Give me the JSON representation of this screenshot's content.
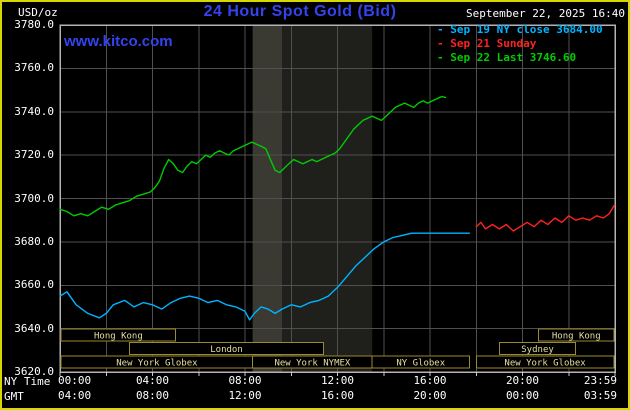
{
  "header": {
    "units": "USD/oz",
    "title": "24 Hour Spot Gold (Bid)",
    "site": "www.kitco.com",
    "datetime": "September 22, 2025 16:40"
  },
  "colors": {
    "title_blue": "#3344ee",
    "frame_yellow": "#d8d800",
    "text_white": "#ffffff"
  },
  "legend": {
    "bullet": "-",
    "items": [
      {
        "label": "Sep 19 NY close 3684.00",
        "color": "#00b4ff"
      },
      {
        "label": "Sep 21 Sunday",
        "color": "#ff2222"
      },
      {
        "label": "Sep 22 Last 3746.60",
        "color": "#00cc00"
      }
    ]
  },
  "axes": {
    "ny_time_label": "NY Time",
    "gmt_label": "GMT"
  },
  "chart_data": {
    "type": "line",
    "title": "24 Hour Spot Gold (Bid)",
    "ylabel": "USD/oz",
    "xlabel": "NY Time",
    "xlim_hours": [
      0,
      24
    ],
    "ylim": [
      3620,
      3780
    ],
    "y_tick_step": 20,
    "grid_hours_step": 2,
    "y_tick_labels": [
      "3780.0",
      "3760.0",
      "3740.0",
      "3720.0",
      "3700.0",
      "3680.0",
      "3660.0",
      "3640.0",
      "3620.0"
    ],
    "x_ticks": [
      {
        "hour": 0,
        "ny": "00:00",
        "gmt": "04:00"
      },
      {
        "hour": 4,
        "ny": "04:00",
        "gmt": "08:00"
      },
      {
        "hour": 8,
        "ny": "08:00",
        "gmt": "12:00"
      },
      {
        "hour": 12,
        "ny": "12:00",
        "gmt": "16:00"
      },
      {
        "hour": 16,
        "ny": "16:00",
        "gmt": "20:00"
      },
      {
        "hour": 20,
        "ny": "20:00",
        "gmt": "00:00"
      },
      {
        "hour": 23.983,
        "ny": "23:59",
        "gmt": "03:59"
      }
    ],
    "colors": {
      "grid": "#4f4f4f",
      "plot_border": "#b4b4b4",
      "session_box": "#9a8a30",
      "session_text": "#e8dfa0",
      "tick": "#cccccc"
    },
    "bands": [
      {
        "from_hour": 8.33,
        "to_hour": 9.6,
        "color": "#3a3a33"
      },
      {
        "from_hour": 9.6,
        "to_hour": 13.5,
        "color": "#1f1f1c"
      }
    ],
    "series": [
      {
        "id": "sep19",
        "name": "Sep 19 NY close",
        "close": 3684.0,
        "color": "#00b4ff",
        "points": [
          [
            0,
            3655
          ],
          [
            0.3,
            3657
          ],
          [
            0.7,
            3651
          ],
          [
            1.2,
            3647
          ],
          [
            1.7,
            3645
          ],
          [
            2,
            3647
          ],
          [
            2.3,
            3651
          ],
          [
            2.8,
            3653
          ],
          [
            3.2,
            3650
          ],
          [
            3.6,
            3652
          ],
          [
            4,
            3651
          ],
          [
            4.4,
            3649
          ],
          [
            4.8,
            3652
          ],
          [
            5.2,
            3654
          ],
          [
            5.6,
            3655
          ],
          [
            6,
            3654
          ],
          [
            6.4,
            3652
          ],
          [
            6.8,
            3653
          ],
          [
            7.2,
            3651
          ],
          [
            7.6,
            3650
          ],
          [
            8,
            3648
          ],
          [
            8.2,
            3644
          ],
          [
            8.4,
            3647
          ],
          [
            8.7,
            3650
          ],
          [
            9,
            3649
          ],
          [
            9.3,
            3647
          ],
          [
            9.6,
            3649
          ],
          [
            10,
            3651
          ],
          [
            10.4,
            3650
          ],
          [
            10.8,
            3652
          ],
          [
            11.2,
            3653
          ],
          [
            11.6,
            3655
          ],
          [
            12,
            3659
          ],
          [
            12.4,
            3664
          ],
          [
            12.8,
            3669
          ],
          [
            13.2,
            3673
          ],
          [
            13.6,
            3677
          ],
          [
            14,
            3680
          ],
          [
            14.4,
            3682
          ],
          [
            14.8,
            3683
          ],
          [
            15.2,
            3684
          ],
          [
            16,
            3684
          ],
          [
            17,
            3684
          ],
          [
            17.7,
            3684
          ]
        ]
      },
      {
        "id": "sep21",
        "name": "Sep 21 Sunday",
        "color": "#ff2222",
        "points": [
          [
            18,
            3687
          ],
          [
            18.2,
            3689
          ],
          [
            18.4,
            3686
          ],
          [
            18.7,
            3688
          ],
          [
            19,
            3686
          ],
          [
            19.3,
            3688
          ],
          [
            19.6,
            3685
          ],
          [
            19.9,
            3687
          ],
          [
            20.2,
            3689
          ],
          [
            20.5,
            3687
          ],
          [
            20.8,
            3690
          ],
          [
            21.1,
            3688
          ],
          [
            21.4,
            3691
          ],
          [
            21.7,
            3689
          ],
          [
            22,
            3692
          ],
          [
            22.3,
            3690
          ],
          [
            22.6,
            3691
          ],
          [
            22.9,
            3690
          ],
          [
            23.2,
            3692
          ],
          [
            23.5,
            3691
          ],
          [
            23.75,
            3693
          ],
          [
            23.98,
            3697
          ]
        ]
      },
      {
        "id": "sep22",
        "name": "Sep 22 Last",
        "last": 3746.6,
        "color": "#00cc00",
        "points": [
          [
            0,
            3695
          ],
          [
            0.3,
            3694
          ],
          [
            0.6,
            3692
          ],
          [
            0.9,
            3693
          ],
          [
            1.2,
            3692
          ],
          [
            1.5,
            3694
          ],
          [
            1.8,
            3696
          ],
          [
            2.1,
            3695
          ],
          [
            2.4,
            3697
          ],
          [
            2.7,
            3698
          ],
          [
            3,
            3699
          ],
          [
            3.3,
            3701
          ],
          [
            3.6,
            3702
          ],
          [
            3.9,
            3703
          ],
          [
            4.1,
            3705
          ],
          [
            4.3,
            3708
          ],
          [
            4.5,
            3714
          ],
          [
            4.7,
            3718
          ],
          [
            4.9,
            3716
          ],
          [
            5.1,
            3713
          ],
          [
            5.3,
            3712
          ],
          [
            5.5,
            3715
          ],
          [
            5.7,
            3717
          ],
          [
            5.9,
            3716
          ],
          [
            6.1,
            3718
          ],
          [
            6.3,
            3720
          ],
          [
            6.5,
            3719
          ],
          [
            6.7,
            3721
          ],
          [
            6.9,
            3722
          ],
          [
            7.1,
            3721
          ],
          [
            7.3,
            3720
          ],
          [
            7.5,
            3722
          ],
          [
            7.7,
            3723
          ],
          [
            7.9,
            3724
          ],
          [
            8.1,
            3725
          ],
          [
            8.3,
            3726
          ],
          [
            8.5,
            3725
          ],
          [
            8.7,
            3724
          ],
          [
            8.9,
            3723
          ],
          [
            9.1,
            3718
          ],
          [
            9.3,
            3713
          ],
          [
            9.5,
            3712
          ],
          [
            9.7,
            3714
          ],
          [
            9.9,
            3716
          ],
          [
            10.1,
            3718
          ],
          [
            10.3,
            3717
          ],
          [
            10.5,
            3716
          ],
          [
            10.7,
            3717
          ],
          [
            10.9,
            3718
          ],
          [
            11.1,
            3717
          ],
          [
            11.3,
            3718
          ],
          [
            11.5,
            3719
          ],
          [
            11.7,
            3720
          ],
          [
            11.9,
            3721
          ],
          [
            12.1,
            3723
          ],
          [
            12.3,
            3726
          ],
          [
            12.5,
            3729
          ],
          [
            12.7,
            3732
          ],
          [
            12.9,
            3734
          ],
          [
            13.1,
            3736
          ],
          [
            13.3,
            3737
          ],
          [
            13.5,
            3738
          ],
          [
            13.7,
            3737
          ],
          [
            13.9,
            3736
          ],
          [
            14.1,
            3738
          ],
          [
            14.3,
            3740
          ],
          [
            14.5,
            3742
          ],
          [
            14.7,
            3743
          ],
          [
            14.9,
            3744
          ],
          [
            15.1,
            3743
          ],
          [
            15.3,
            3742
          ],
          [
            15.5,
            3744
          ],
          [
            15.7,
            3745
          ],
          [
            15.9,
            3744
          ],
          [
            16.1,
            3745
          ],
          [
            16.3,
            3746
          ],
          [
            16.5,
            3747
          ],
          [
            16.67,
            3746.6
          ]
        ]
      }
    ],
    "sessions": [
      {
        "row": 0,
        "from_hour": 0.05,
        "to_hour": 5.0,
        "label": "Hong Kong"
      },
      {
        "row": 0,
        "from_hour": 20.7,
        "to_hour": 23.95,
        "label": "Hong Kong"
      },
      {
        "row": 1,
        "from_hour": 3.0,
        "to_hour": 11.4,
        "label": "London"
      },
      {
        "row": 1,
        "from_hour": 19.0,
        "to_hour": 22.3,
        "label": "Sydney"
      },
      {
        "row": 2,
        "from_hour": 0.05,
        "to_hour": 8.33,
        "label": "New York Globex"
      },
      {
        "row": 2,
        "from_hour": 8.33,
        "to_hour": 13.5,
        "label": "New York NYMEX"
      },
      {
        "row": 2,
        "from_hour": 13.5,
        "to_hour": 17.7,
        "label": "NY Globex"
      },
      {
        "row": 2,
        "from_hour": 18.0,
        "to_hour": 23.95,
        "label": "New York Globex"
      }
    ]
  }
}
